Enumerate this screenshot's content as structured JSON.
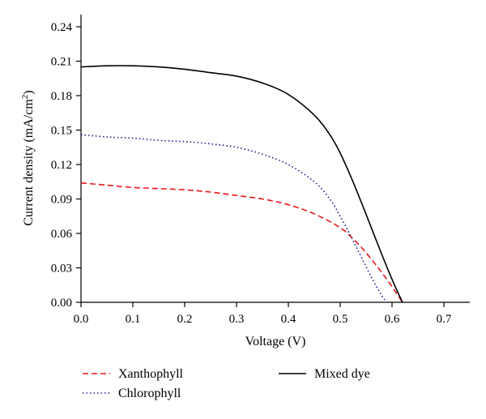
{
  "chart_data": {
    "type": "line",
    "xlabel": "Voltage (V)",
    "ylabel_main": "Current density (mA/cm",
    "ylabel_sup": "2",
    "ylabel_end": ")",
    "xlim": [
      0,
      0.75
    ],
    "ylim": [
      0,
      0.24
    ],
    "xticks": [
      0.0,
      0.1,
      0.2,
      0.3,
      0.4,
      0.5,
      0.6,
      0.7
    ],
    "xtick_labels": [
      "0.0",
      "0.1",
      "0.2",
      "0.3",
      "0.4",
      "0.5",
      "0.6",
      "0.7"
    ],
    "yticks": [
      0.0,
      0.03,
      0.06,
      0.09,
      0.12,
      0.15,
      0.18,
      0.21,
      0.24
    ],
    "ytick_labels": [
      "0.00",
      "0.03",
      "0.06",
      "0.09",
      "0.12",
      "0.15",
      "0.18",
      "0.21",
      "0.24"
    ],
    "grid": false,
    "legend_placement": "bottom",
    "series": [
      {
        "name": "Xanthophyll",
        "color": "#e8161b",
        "dash": "dashed",
        "x": [
          0.0,
          0.05,
          0.1,
          0.15,
          0.2,
          0.25,
          0.3,
          0.35,
          0.4,
          0.45,
          0.5,
          0.53,
          0.55,
          0.57,
          0.59,
          0.61,
          0.62
        ],
        "y": [
          0.104,
          0.102,
          0.1,
          0.099,
          0.098,
          0.096,
          0.093,
          0.09,
          0.085,
          0.077,
          0.065,
          0.053,
          0.043,
          0.032,
          0.02,
          0.007,
          0.0
        ]
      },
      {
        "name": "Chlorophyll",
        "color": "#1a1a8c",
        "dash": "dotted",
        "x": [
          0.0,
          0.05,
          0.1,
          0.15,
          0.2,
          0.25,
          0.3,
          0.35,
          0.4,
          0.45,
          0.48,
          0.5,
          0.52,
          0.54,
          0.56,
          0.58,
          0.59
        ],
        "y": [
          0.146,
          0.144,
          0.143,
          0.141,
          0.14,
          0.138,
          0.135,
          0.129,
          0.12,
          0.105,
          0.09,
          0.075,
          0.058,
          0.04,
          0.022,
          0.006,
          0.0
        ]
      },
      {
        "name": "Mixed dye",
        "color": "#000000",
        "dash": "solid",
        "x": [
          0.0,
          0.05,
          0.1,
          0.15,
          0.2,
          0.25,
          0.3,
          0.35,
          0.4,
          0.45,
          0.48,
          0.5,
          0.52,
          0.54,
          0.56,
          0.58,
          0.6,
          0.62
        ],
        "y": [
          0.205,
          0.206,
          0.206,
          0.205,
          0.203,
          0.2,
          0.197,
          0.191,
          0.181,
          0.163,
          0.146,
          0.13,
          0.11,
          0.088,
          0.065,
          0.042,
          0.02,
          0.0
        ]
      }
    ]
  }
}
